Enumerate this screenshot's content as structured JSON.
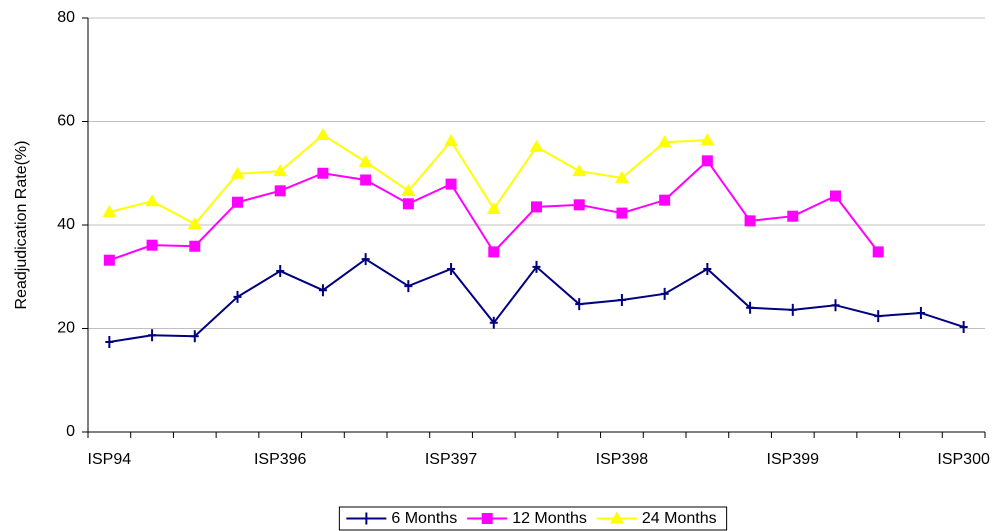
{
  "chart_data": {
    "type": "line",
    "y_label": "Readjudication Rate(%)",
    "categories": [
      "ISP94",
      null,
      null,
      null,
      "ISP396",
      null,
      null,
      null,
      "ISP397",
      null,
      null,
      null,
      "ISP398",
      null,
      null,
      null,
      "ISP399",
      null,
      null,
      null,
      "ISP300"
    ],
    "series": [
      {
        "name": "6 Months",
        "color": "#000080",
        "marker": "plus",
        "values": [
          17.4,
          18.7,
          18.5,
          26.1,
          31.1,
          27.4,
          33.4,
          28.2,
          31.5,
          21.1,
          31.9,
          24.7,
          25.5,
          26.7,
          31.5,
          24.0,
          23.6,
          24.5,
          22.4,
          23.0,
          20.3
        ]
      },
      {
        "name": "12 Months",
        "color": "#ff00ff",
        "marker": "square",
        "values": [
          33.2,
          36.1,
          35.9,
          44.4,
          46.6,
          50.0,
          48.7,
          44.1,
          47.9,
          34.8,
          43.5,
          43.9,
          42.3,
          44.8,
          52.4,
          40.8,
          41.7,
          45.6,
          34.8,
          null,
          null
        ]
      },
      {
        "name": "24 Months",
        "color": "#ffff00",
        "marker": "triangle",
        "values": [
          42.5,
          44.6,
          40.2,
          49.9,
          50.4,
          57.4,
          52.2,
          46.6,
          56.2,
          43.1,
          55.1,
          50.4,
          49.1,
          56.0,
          56.4,
          null,
          null,
          null,
          null,
          null,
          null
        ]
      }
    ],
    "ylim": [
      0,
      80
    ],
    "yticks": [
      0,
      20,
      40,
      60,
      80
    ],
    "grid": true,
    "legend": "bottom"
  }
}
